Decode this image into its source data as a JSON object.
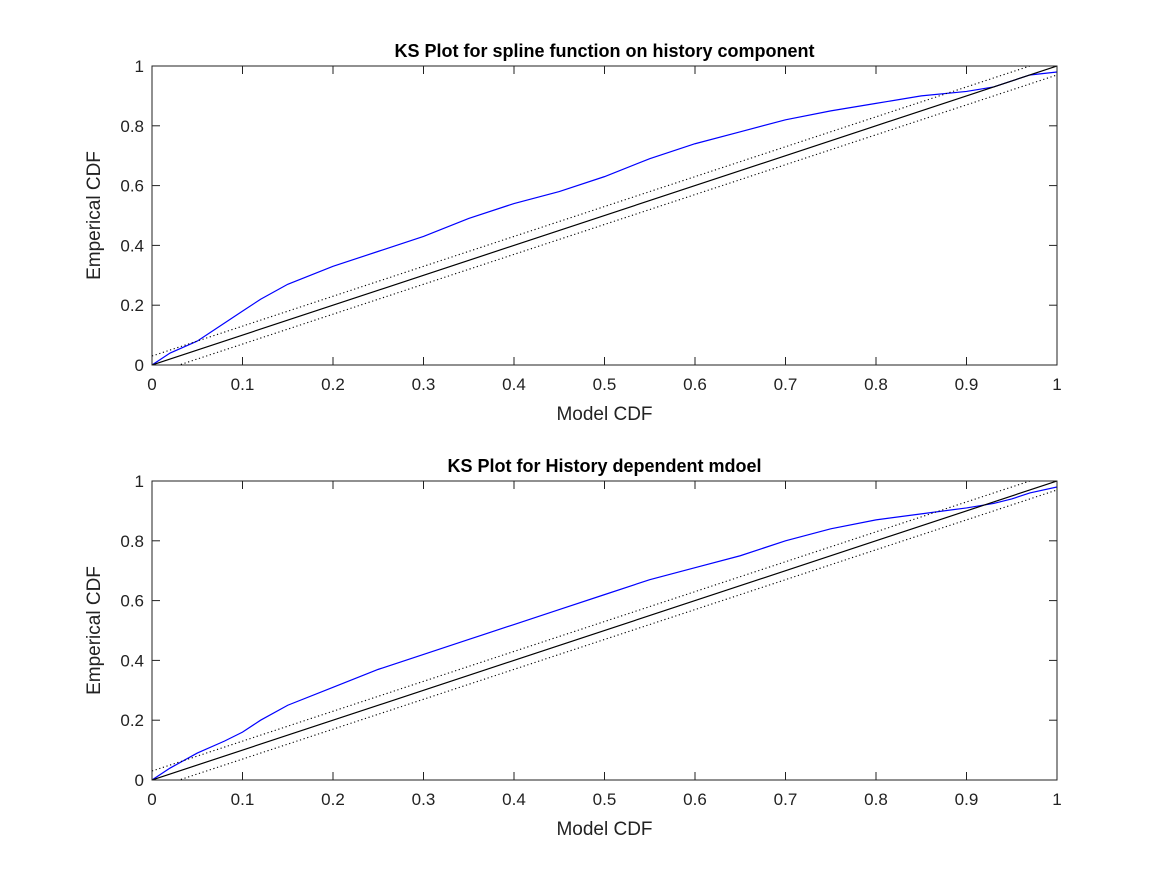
{
  "chart_data": [
    {
      "type": "line",
      "title": "KS Plot for spline function on history component",
      "xlabel": "Model CDF",
      "ylabel": "Emperical CDF",
      "xlim": [
        0,
        1
      ],
      "ylim": [
        0,
        1
      ],
      "xticks": [
        "0",
        "0.1",
        "0.2",
        "0.3",
        "0.4",
        "0.5",
        "0.6",
        "0.7",
        "0.8",
        "0.9",
        "1"
      ],
      "yticks": [
        "0",
        "0.2",
        "0.4",
        "0.6",
        "0.8",
        "1"
      ],
      "grid": false,
      "series": [
        {
          "style": "solid",
          "color": "#0000ff",
          "x": [
            0,
            0.02,
            0.05,
            0.08,
            0.1,
            0.12,
            0.15,
            0.2,
            0.25,
            0.3,
            0.35,
            0.4,
            0.45,
            0.5,
            0.55,
            0.6,
            0.65,
            0.7,
            0.75,
            0.8,
            0.85,
            0.9,
            0.93,
            0.95,
            0.97,
            1
          ],
          "y": [
            0,
            0.04,
            0.08,
            0.14,
            0.18,
            0.22,
            0.27,
            0.33,
            0.38,
            0.43,
            0.49,
            0.54,
            0.58,
            0.63,
            0.69,
            0.74,
            0.78,
            0.82,
            0.85,
            0.875,
            0.9,
            0.915,
            0.93,
            0.95,
            0.97,
            0.98
          ]
        },
        {
          "style": "solid",
          "color": "#000000",
          "x": [
            0,
            1
          ],
          "y": [
            0,
            1
          ]
        },
        {
          "style": "dotted",
          "color": "#000000",
          "x": [
            0,
            1
          ],
          "y": [
            0.03,
            1.03
          ]
        },
        {
          "style": "dotted",
          "color": "#000000",
          "x": [
            0,
            1
          ],
          "y": [
            -0.03,
            0.97
          ]
        }
      ]
    },
    {
      "type": "line",
      "title": "KS Plot for History dependent mdoel",
      "xlabel": "Model CDF",
      "ylabel": "Emperical CDF",
      "xlim": [
        0,
        1
      ],
      "ylim": [
        0,
        1
      ],
      "xticks": [
        "0",
        "0.1",
        "0.2",
        "0.3",
        "0.4",
        "0.5",
        "0.6",
        "0.7",
        "0.8",
        "0.9",
        "1"
      ],
      "yticks": [
        "0",
        "0.2",
        "0.4",
        "0.6",
        "0.8",
        "1"
      ],
      "grid": false,
      "series": [
        {
          "style": "solid",
          "color": "#0000ff",
          "x": [
            0,
            0.02,
            0.05,
            0.08,
            0.1,
            0.12,
            0.15,
            0.2,
            0.25,
            0.3,
            0.35,
            0.4,
            0.45,
            0.5,
            0.55,
            0.6,
            0.65,
            0.7,
            0.75,
            0.8,
            0.85,
            0.9,
            0.93,
            0.95,
            0.97,
            1
          ],
          "y": [
            0,
            0.04,
            0.09,
            0.13,
            0.16,
            0.2,
            0.25,
            0.31,
            0.37,
            0.42,
            0.47,
            0.52,
            0.57,
            0.62,
            0.67,
            0.71,
            0.75,
            0.8,
            0.84,
            0.87,
            0.89,
            0.91,
            0.925,
            0.94,
            0.96,
            0.98
          ]
        },
        {
          "style": "solid",
          "color": "#000000",
          "x": [
            0,
            1
          ],
          "y": [
            0,
            1
          ]
        },
        {
          "style": "dotted",
          "color": "#000000",
          "x": [
            0,
            1
          ],
          "y": [
            0.03,
            1.03
          ]
        },
        {
          "style": "dotted",
          "color": "#000000",
          "x": [
            0,
            1
          ],
          "y": [
            -0.03,
            0.97
          ]
        }
      ]
    }
  ]
}
